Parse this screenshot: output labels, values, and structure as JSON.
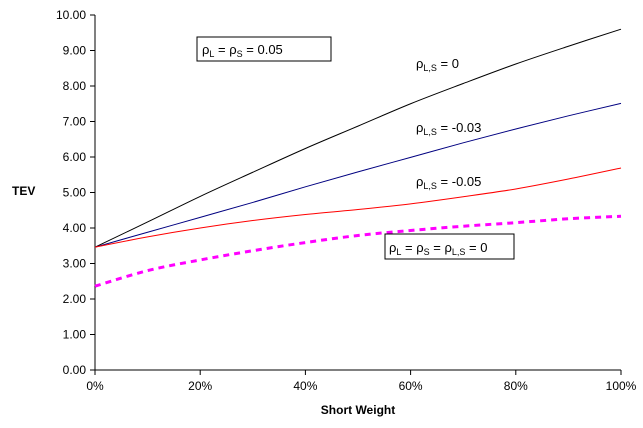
{
  "chart_data": {
    "type": "line",
    "x": [
      0,
      10,
      20,
      30,
      40,
      50,
      60,
      70,
      80,
      90,
      100
    ],
    "x_tick_labels": [
      "0%",
      "20%",
      "40%",
      "60%",
      "80%",
      "100%"
    ],
    "x_tick_values": [
      0,
      20,
      40,
      60,
      80,
      100
    ],
    "y_tick_labels": [
      "0.00",
      "1.00",
      "2.00",
      "3.00",
      "4.00",
      "5.00",
      "6.00",
      "7.00",
      "8.00",
      "9.00",
      "10.00"
    ],
    "y_tick_values": [
      0,
      1,
      2,
      3,
      4,
      5,
      6,
      7,
      8,
      9,
      10
    ],
    "xlabel": "Short Weight",
    "ylabel": "TEV",
    "xlim": [
      0,
      100
    ],
    "ylim": [
      0,
      10
    ],
    "grid": false,
    "series": [
      {
        "name": "ρL,S = 0",
        "color": "#000000",
        "style": "solid",
        "values": [
          3.46,
          4.17,
          4.89,
          5.57,
          6.24,
          6.87,
          7.5,
          8.07,
          8.62,
          9.12,
          9.6
        ]
      },
      {
        "name": "ρL,S = -0.03",
        "color": "#000080",
        "style": "solid",
        "values": [
          3.46,
          3.88,
          4.3,
          4.72,
          5.16,
          5.58,
          5.99,
          6.4,
          6.79,
          7.16,
          7.51
        ]
      },
      {
        "name": "ρL,S = -0.05",
        "color": "#ff0000",
        "style": "solid",
        "values": [
          3.46,
          3.75,
          4.0,
          4.21,
          4.38,
          4.52,
          4.68,
          4.88,
          5.1,
          5.38,
          5.69
        ]
      },
      {
        "name": "ρL = ρS = ρL,S = 0",
        "color": "#ff00ff",
        "style": "dotted",
        "values": [
          2.36,
          2.8,
          3.1,
          3.36,
          3.59,
          3.79,
          3.93,
          4.05,
          4.15,
          4.26,
          4.33
        ]
      }
    ],
    "annotations": {
      "box1": {
        "rho": "ρ",
        "sub1": "L",
        "mid1": " = ρ",
        "sub2": "S",
        "tail": " = 0.05"
      },
      "label_0": {
        "rho": "ρ",
        "sub": "L,S",
        "tail": " = 0"
      },
      "label_m003": {
        "rho": "ρ",
        "sub": "L,S",
        "tail": " = -0.03"
      },
      "label_m005": {
        "rho": "ρ",
        "sub": "L,S",
        "tail": " = -0.05"
      },
      "box2": {
        "rho": "ρ",
        "sub1": "L",
        "mid1": " = ρ",
        "sub2": "S",
        "mid2": " = ρ",
        "sub3": "L,S",
        "tail": " = 0"
      }
    }
  }
}
